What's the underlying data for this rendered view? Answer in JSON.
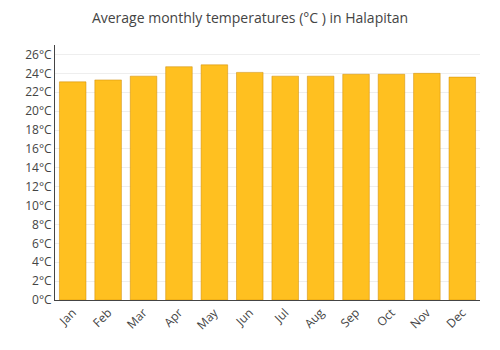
{
  "chart_data": {
    "type": "bar",
    "title": "Average monthly temperatures (°C ) in Halapitan",
    "categories": [
      "Jan",
      "Feb",
      "Mar",
      "Apr",
      "May",
      "Jun",
      "Jul",
      "Aug",
      "Sep",
      "Oct",
      "Nov",
      "Dec"
    ],
    "values": [
      23.1,
      23.3,
      23.7,
      24.7,
      24.9,
      24.1,
      23.7,
      23.7,
      23.9,
      23.9,
      24.0,
      23.6
    ],
    "color": "#FFC020",
    "ylim": [
      0,
      27
    ],
    "yticks": [
      {
        "value": 0,
        "label": "0°C"
      },
      {
        "value": 2,
        "label": "2°C"
      },
      {
        "value": 4,
        "label": "4°C"
      },
      {
        "value": 6,
        "label": "6°C"
      },
      {
        "value": 8,
        "label": "8°C"
      },
      {
        "value": 10,
        "label": "10°C"
      },
      {
        "value": 12,
        "label": "12°C"
      },
      {
        "value": 14,
        "label": "14°C"
      },
      {
        "value": 16,
        "label": "16°C"
      },
      {
        "value": 18,
        "label": "18°C"
      },
      {
        "value": 20,
        "label": "20°C"
      },
      {
        "value": 22,
        "label": "22°C"
      },
      {
        "value": 24,
        "label": "24°C"
      },
      {
        "value": 26,
        "label": "26°C"
      }
    ],
    "grid": true
  }
}
